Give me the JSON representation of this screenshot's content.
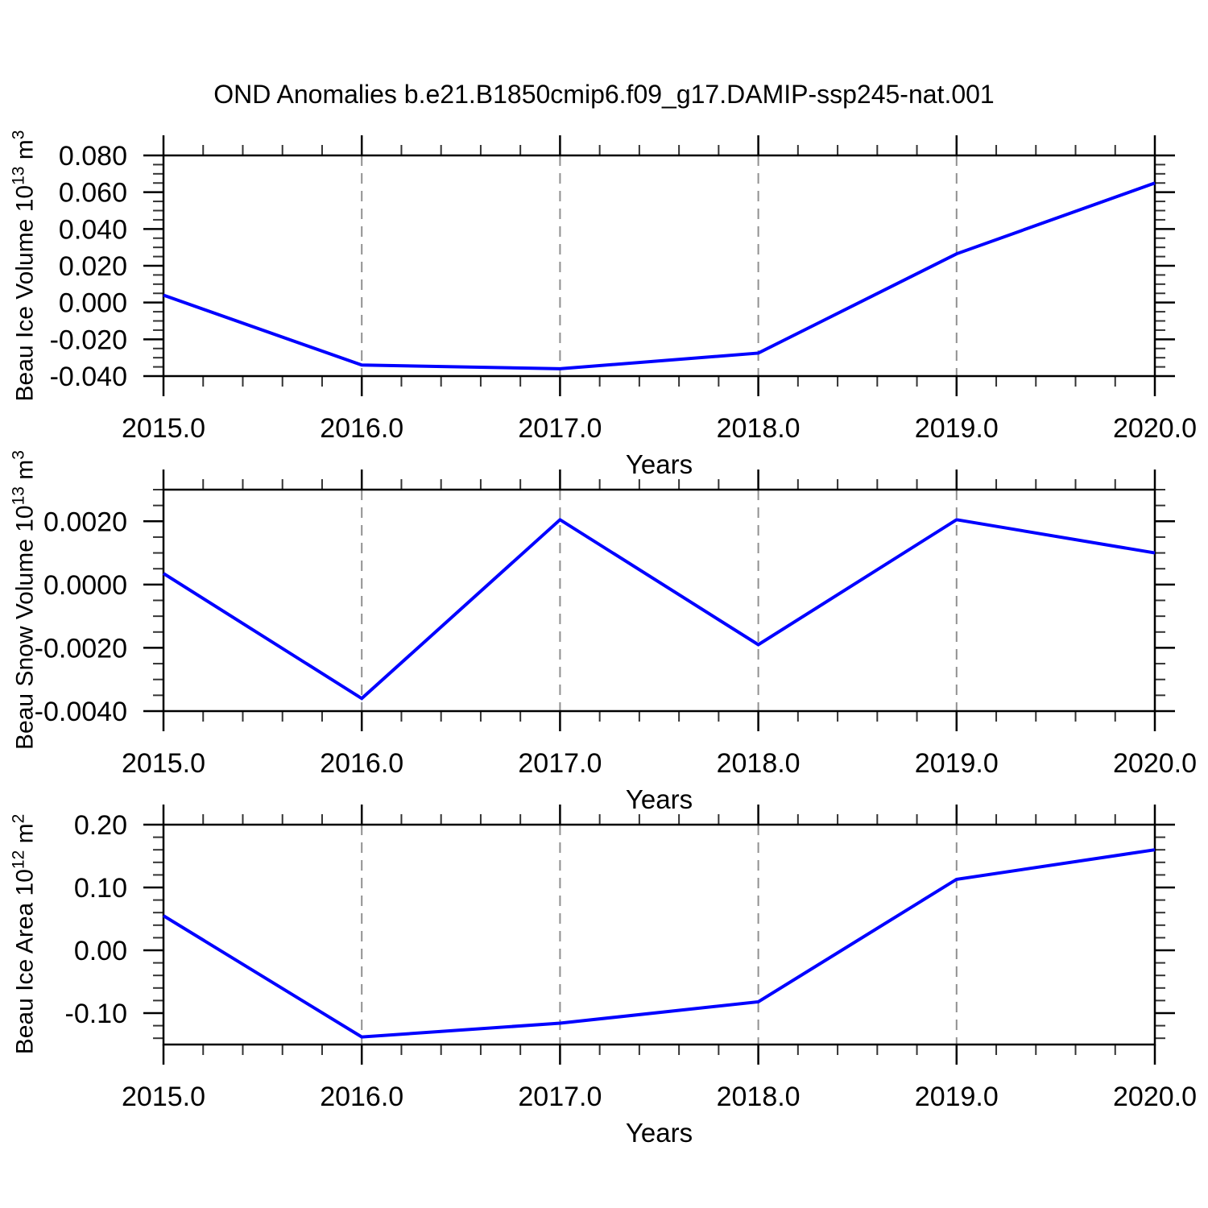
{
  "chart_data": {
    "type": "line",
    "title": "OND Anomalies b.e21.B1850cmip6.f09_g17.DAMIP-ssp245-nat.001",
    "xlabel": "Years",
    "line_color": "#0000ff",
    "grid_color": "#909090",
    "frame_color": "#000000",
    "x": [
      2015,
      2016,
      2017,
      2018,
      2019,
      2020
    ],
    "xtick_labels": [
      "2015.0",
      "2016.0",
      "2017.0",
      "2018.0",
      "2019.0",
      "2020.0"
    ],
    "x_range": [
      2015,
      2020
    ],
    "x_minor_step": 0.2,
    "grid_years": [
      2016,
      2017,
      2018,
      2019
    ],
    "grid_style": "dashed",
    "legend": "none",
    "panels": [
      {
        "id": "ice-volume",
        "ylabel": {
          "prefix": "Beau Ice Volume 10",
          "exponent": "13",
          "unit": " m",
          "unit_exponent": "3"
        },
        "ylabel_plain": "Beau Ice Volume 10^13 m^3",
        "y_range": [
          -0.04,
          0.08
        ],
        "ytick_values": [
          0.08,
          0.06,
          0.04,
          0.02,
          0.0,
          -0.02,
          -0.04
        ],
        "ytick_labels": [
          "0.080",
          "0.060",
          "0.040",
          "0.020",
          "0.000",
          "-0.020",
          "-0.040"
        ],
        "y_minor_step": 0.005,
        "values": [
          0.004,
          -0.034,
          -0.036,
          -0.0275,
          0.0265,
          0.065
        ]
      },
      {
        "id": "snow-volume",
        "ylabel": {
          "prefix": "Beau Snow Volume 10",
          "exponent": "13",
          "unit": " m",
          "unit_exponent": "3"
        },
        "ylabel_plain": "Beau Snow Volume 10^13 m^3",
        "y_range": [
          -0.004,
          0.003
        ],
        "ytick_values": [
          0.002,
          0.0,
          -0.002,
          -0.004
        ],
        "ytick_labels": [
          "0.0020",
          "0.0000",
          "-0.0020",
          "-0.0040"
        ],
        "y_minor_step": 0.0005,
        "values": [
          0.00035,
          -0.0036,
          0.00205,
          -0.0019,
          0.00205,
          0.001
        ]
      },
      {
        "id": "ice-area",
        "ylabel": {
          "prefix": "Beau Ice Area 10",
          "exponent": "12",
          "unit": " m",
          "unit_exponent": "2"
        },
        "ylabel_plain": "Beau Ice Area 10^12 m^2",
        "y_range": [
          -0.15,
          0.2
        ],
        "ytick_values": [
          0.2,
          0.1,
          0.0,
          -0.1
        ],
        "ytick_labels": [
          "0.20",
          "0.10",
          "0.00",
          "-0.10"
        ],
        "y_minor_step": 0.02,
        "values": [
          0.055,
          -0.138,
          -0.116,
          -0.082,
          0.113,
          0.16
        ]
      }
    ]
  }
}
